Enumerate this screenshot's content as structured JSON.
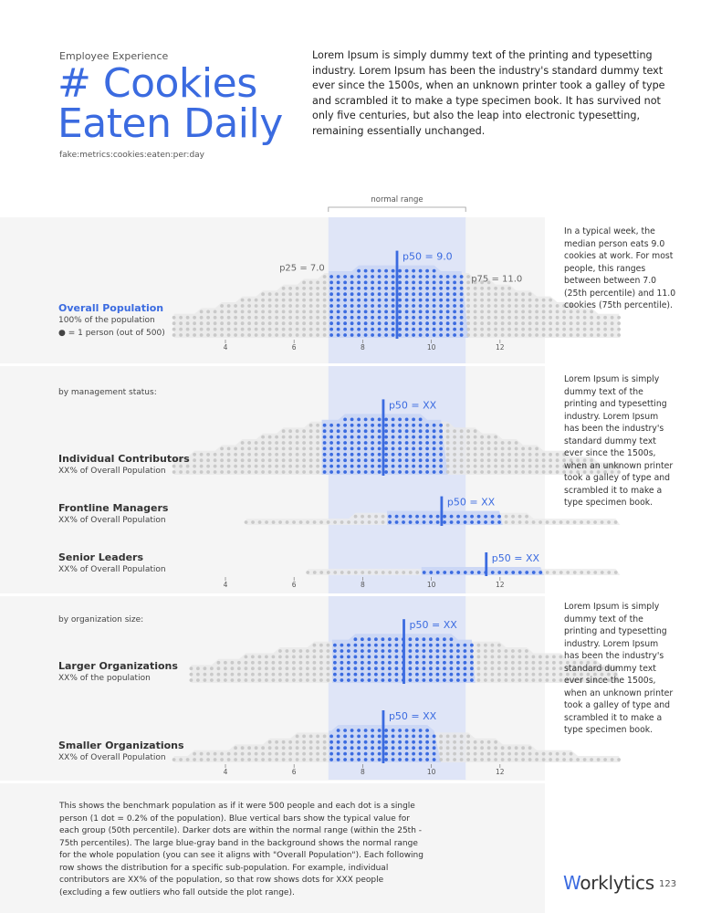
{
  "header": {
    "eyebrow": "Employee Experience",
    "title_line1": "# Cookies",
    "title_line2": "Eaten Daily",
    "metric": "fake:metrics:cookies:eaten:per:day",
    "intro": "Lorem Ipsum is simply dummy text of the printing and typesetting industry. Lorem Ipsum has been the industry's standard dummy text ever since the 1500s, when an unknown printer took a galley of type and scrambled it to make a type specimen book. It has survived not only five centuries, but also the leap into electronic typesetting, remaining essentially unchanged."
  },
  "labels": {
    "normal_range": "normal range",
    "overall_title": "Overall Population",
    "overall_sub1": "100% of the population",
    "overall_sub2": "● = 1 person (out of 500)",
    "by_management": "by management status:",
    "by_org": "by organization size:",
    "ic_title": "Individual Contributors",
    "ic_sub": "XX% of Overall Population",
    "fm_title": "Frontline Managers",
    "fm_sub": "XX% of Overall Population",
    "sl_title": "Senior Leaders",
    "sl_sub": "XX% of Overall Population",
    "lo_title": "Larger Organizations",
    "lo_sub": "XX% of the population",
    "so_title": "Smaller Organizations",
    "so_sub": "XX% of Overall Population"
  },
  "notes": {
    "overall": "In a typical week, the median person eats 9.0 cookies at work. For most people, this ranges between between 7.0 (25th percentile) and 11.0 cookies (75th percentile).",
    "management": "Lorem Ipsum is simply dummy text of the printing and typesetting industry. Lorem Ipsum has been the industry's standard dummy text ever since the 1500s, when an unknown printer took a galley of type and scrambled it to make a type specimen book.",
    "org": "Lorem Ipsum is simply dummy text of the printing and typesetting industry. Lorem Ipsum has been the industry's standard dummy text ever since the 1500s, when an unknown printer took a galley of type and scrambled it to make a type specimen book."
  },
  "footnote": "This shows the benchmark population as if it were 500 people and each dot is a single person (1 dot = 0.2% of the population). Blue vertical bars show the typical value for each group (50th percentile). Darker dots are within the normal range (within the 25th - 75th percentiles). The large blue-gray band in the background shows the normal range for the whole population (you can see it aligns with \"Overall Population\"). Each following row shows the distribution for a specific sub-population. For example, individual contributors are XX% of the population, so that row shows dots for XXX people (excluding a few outliers who fall outside the plot range).",
  "brand": {
    "name": "orklytics",
    "mark": "W",
    "page": "123"
  },
  "colors": {
    "accent": "#3b6be0",
    "band": "#dfe5f7",
    "dot_in": "#3b6be0",
    "dot_out": "#c9c9c9",
    "panel": "#f5f5f5"
  },
  "chart_data": {
    "type": "dot-distribution",
    "x_ticks": [
      4,
      6,
      8,
      10,
      12
    ],
    "xlim": [
      2.5,
      15.6
    ],
    "normal_range": [
      7,
      11
    ],
    "rows": [
      {
        "id": "overall",
        "p25": 7.0,
        "p50": 9.0,
        "p75": 11.0,
        "p25_label": "p25 = 7.0",
        "p50_label": "p50 = 9.0",
        "p75_label": "p75 = 11.0",
        "range": [
          2.5,
          15.5
        ],
        "peak": 9.0,
        "max_stack": 12
      },
      {
        "id": "individual-contributors",
        "p25": 6.8,
        "p50": 8.6,
        "p75": 10.4,
        "p50_label": "p50 = XX",
        "range": [
          2.5,
          15.5
        ],
        "peak": 8.5,
        "max_stack": 10
      },
      {
        "id": "frontline-managers",
        "p25": 8.6,
        "p50": 10.3,
        "p75": 12.0,
        "p50_label": "p50 = XX",
        "range": [
          4.6,
          15.5
        ],
        "peak": 10.3,
        "max_stack": 2
      },
      {
        "id": "senior-leaders",
        "p25": 9.6,
        "p50": 11.6,
        "p75": 13.2,
        "p50_label": "p50 = XX",
        "range": [
          6.4,
          15.5
        ],
        "peak": 11.6,
        "max_stack": 1
      },
      {
        "id": "larger-organizations",
        "p25": 7.0,
        "p50": 9.2,
        "p75": 11.2,
        "p50_label": "p50 = XX",
        "range": [
          3.0,
          15.5
        ],
        "peak": 9.2,
        "max_stack": 8
      },
      {
        "id": "smaller-organizations",
        "p25": 7.0,
        "p50": 8.6,
        "p75": 10.2,
        "p50_label": "p50 = XX",
        "range": [
          2.5,
          15.5
        ],
        "peak": 8.6,
        "max_stack": 6
      }
    ]
  }
}
